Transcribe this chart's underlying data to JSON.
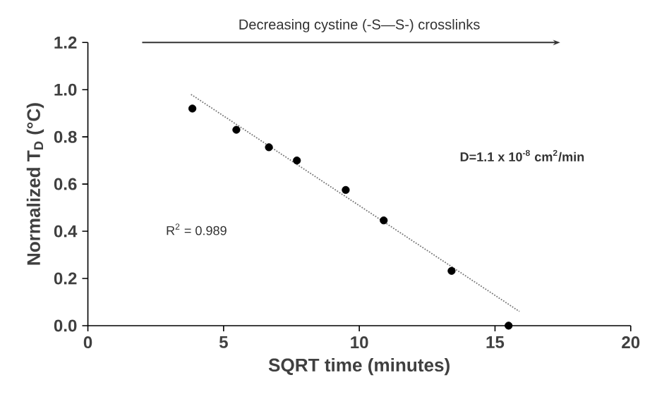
{
  "chart_data": {
    "type": "scatter",
    "xlabel": "SQRT time (minutes)",
    "ylabel": "Normalized T$_{D}$ (°C)",
    "xlim": [
      0,
      20
    ],
    "ylim": [
      0,
      1.2
    ],
    "xticks": [
      0,
      5,
      10,
      15,
      20
    ],
    "yticks": [
      {
        "value": 0,
        "label": "0.0"
      },
      {
        "value": 0.2,
        "label": "0.2"
      },
      {
        "value": 0.4,
        "label": "0.4"
      },
      {
        "value": 0.6,
        "label": "0.6"
      },
      {
        "value": 0.8,
        "label": "0.8"
      },
      {
        "value": 1.0,
        "label": "1.0"
      },
      {
        "value": 1.2,
        "label": "1.2"
      }
    ],
    "grid": false,
    "series": [
      {
        "color": "#000000",
        "marker": "circle",
        "x": [
          3.85,
          5.47,
          6.67,
          7.7,
          9.5,
          10.9,
          13.4,
          15.5
        ],
        "values": [
          0.92,
          0.83,
          0.756,
          0.7,
          0.575,
          0.446,
          0.232,
          0
        ]
      },
      {
        "type": "line",
        "color": "#777777",
        "line_style": "dotted",
        "marker": "none",
        "x": [
          3.8,
          15.9
        ],
        "values": [
          0.98,
          0.06
        ]
      }
    ],
    "annotations": [
      "Decreasing cystine (-S—S-) crosslinks",
      "D=1.1 x 10$^{-8}$ cm$^{2}$/min",
      "R$^{2}$ = 0.989"
    ]
  }
}
